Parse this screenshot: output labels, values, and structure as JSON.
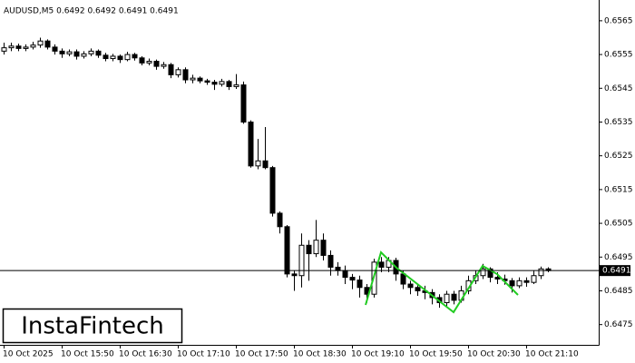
{
  "chart_data": {
    "type": "candlestick",
    "title": "AUDUSD,M5  0.6492 0.6492 0.6491 0.6491",
    "watermark": "InstaFintech",
    "categories": [
      "10 Oct 2025",
      null,
      null,
      null,
      null,
      null,
      null,
      null,
      "10 Oct 15:50",
      null,
      null,
      null,
      null,
      null,
      null,
      null,
      "10 Oct 16:30",
      null,
      null,
      null,
      null,
      null,
      null,
      null,
      "10 Oct 17:10",
      null,
      null,
      null,
      null,
      null,
      null,
      null,
      "10 Oct 17:50",
      null,
      null,
      null,
      null,
      null,
      null,
      null,
      "10 Oct 18:30",
      null,
      null,
      null,
      null,
      null,
      null,
      null,
      "10 Oct 19:10",
      null,
      null,
      null,
      null,
      null,
      null,
      null,
      "10 Oct 19:50",
      null,
      null,
      null,
      null,
      null,
      null,
      null,
      "10 Oct 20:30",
      null,
      null,
      null,
      null,
      null,
      null,
      null,
      "10 Oct 21:10",
      null,
      null,
      null
    ],
    "open": [
      0.6556,
      0.6557,
      0.65575,
      0.65568,
      0.65572,
      0.65578,
      0.6559,
      0.65572,
      0.6556,
      0.65552,
      0.65558,
      0.65545,
      0.65552,
      0.6556,
      0.65548,
      0.65538,
      0.65545,
      0.65535,
      0.6555,
      0.6554,
      0.65525,
      0.6553,
      0.65515,
      0.6552,
      0.6549,
      0.65505,
      0.65475,
      0.6548,
      0.65472,
      0.65468,
      0.65462,
      0.6547,
      0.65455,
      0.6546,
      0.6535,
      0.6522,
      0.65235,
      0.65215,
      0.6508,
      0.6504,
      0.649,
      0.64895,
      0.64985,
      0.6496,
      0.65,
      0.64955,
      0.6492,
      0.6491,
      0.6489,
      0.64882,
      0.6486,
      0.6484,
      0.64935,
      0.6492,
      0.6494,
      0.649,
      0.6487,
      0.6486,
      0.6485,
      0.64845,
      0.6483,
      0.64815,
      0.6484,
      0.64822,
      0.6485,
      0.6488,
      0.64895,
      0.64915,
      0.6489,
      0.64885,
      0.6488,
      0.64865,
      0.6488,
      0.64875,
      0.64895,
      0.64915
    ],
    "high": [
      0.65585,
      0.65585,
      0.65582,
      0.6558,
      0.65588,
      0.656,
      0.65595,
      0.6558,
      0.65568,
      0.65565,
      0.65565,
      0.6556,
      0.65568,
      0.65565,
      0.65555,
      0.65552,
      0.6555,
      0.65558,
      0.65555,
      0.65545,
      0.65538,
      0.65535,
      0.65528,
      0.65525,
      0.65512,
      0.65512,
      0.6549,
      0.65485,
      0.65478,
      0.65475,
      0.65478,
      0.65475,
      0.65492,
      0.6547,
      0.65355,
      0.653,
      0.65335,
      0.6522,
      0.65085,
      0.65045,
      0.6491,
      0.6502,
      0.65,
      0.6506,
      0.6502,
      0.6497,
      0.64935,
      0.64925,
      0.649,
      0.64895,
      0.6487,
      0.64945,
      0.6495,
      0.6495,
      0.64948,
      0.6491,
      0.6488,
      0.6487,
      0.64865,
      0.64855,
      0.6484,
      0.6485,
      0.6485,
      0.64865,
      0.64895,
      0.6491,
      0.6493,
      0.6492,
      0.64905,
      0.64898,
      0.64888,
      0.6489,
      0.6489,
      0.6491,
      0.64922,
      0.6492
    ],
    "low": [
      0.6555,
      0.6556,
      0.6556,
      0.6556,
      0.65565,
      0.6557,
      0.65565,
      0.6555,
      0.6554,
      0.65545,
      0.65535,
      0.65538,
      0.65545,
      0.6554,
      0.6553,
      0.6553,
      0.65525,
      0.6553,
      0.65532,
      0.65518,
      0.65518,
      0.65505,
      0.65508,
      0.6548,
      0.65482,
      0.65465,
      0.65465,
      0.65465,
      0.6546,
      0.65445,
      0.65455,
      0.65445,
      0.65448,
      0.65345,
      0.65215,
      0.6521,
      0.6521,
      0.6507,
      0.6502,
      0.6489,
      0.6485,
      0.6486,
      0.6488,
      0.6495,
      0.6494,
      0.64895,
      0.64895,
      0.6487,
      0.64855,
      0.6483,
      0.64815,
      0.6483,
      0.64905,
      0.64905,
      0.6488,
      0.64855,
      0.6484,
      0.64835,
      0.64825,
      0.6481,
      0.648,
      0.64805,
      0.6481,
      0.64815,
      0.6484,
      0.6487,
      0.64885,
      0.64875,
      0.6487,
      0.64868,
      0.64845,
      0.64858,
      0.64862,
      0.6487,
      0.64885,
      0.64905
    ],
    "close": [
      0.6557,
      0.65575,
      0.65568,
      0.65572,
      0.65578,
      0.6559,
      0.65572,
      0.6556,
      0.65552,
      0.65558,
      0.65545,
      0.65552,
      0.6556,
      0.65548,
      0.65538,
      0.65545,
      0.65535,
      0.6555,
      0.6554,
      0.65525,
      0.6553,
      0.65515,
      0.6552,
      0.6549,
      0.65505,
      0.65475,
      0.6548,
      0.65472,
      0.65468,
      0.65462,
      0.6547,
      0.65455,
      0.6546,
      0.6535,
      0.6522,
      0.65235,
      0.65215,
      0.6508,
      0.6504,
      0.649,
      0.64895,
      0.64985,
      0.6496,
      0.65,
      0.64955,
      0.6492,
      0.6491,
      0.6489,
      0.64882,
      0.6486,
      0.6484,
      0.64935,
      0.6492,
      0.6494,
      0.649,
      0.6487,
      0.6486,
      0.6485,
      0.64845,
      0.6483,
      0.64815,
      0.6484,
      0.64822,
      0.6485,
      0.6488,
      0.64895,
      0.64915,
      0.6489,
      0.64885,
      0.6488,
      0.64865,
      0.6488,
      0.64875,
      0.64895,
      0.64915,
      0.6491
    ],
    "current_price": 0.6491,
    "ylim": [
      0.6469,
      0.6569
    ],
    "yticks": [
      0.6475,
      0.6485,
      0.6495,
      0.6505,
      0.6515,
      0.6525,
      0.6535,
      0.6545,
      0.6555,
      0.6565
    ]
  }
}
